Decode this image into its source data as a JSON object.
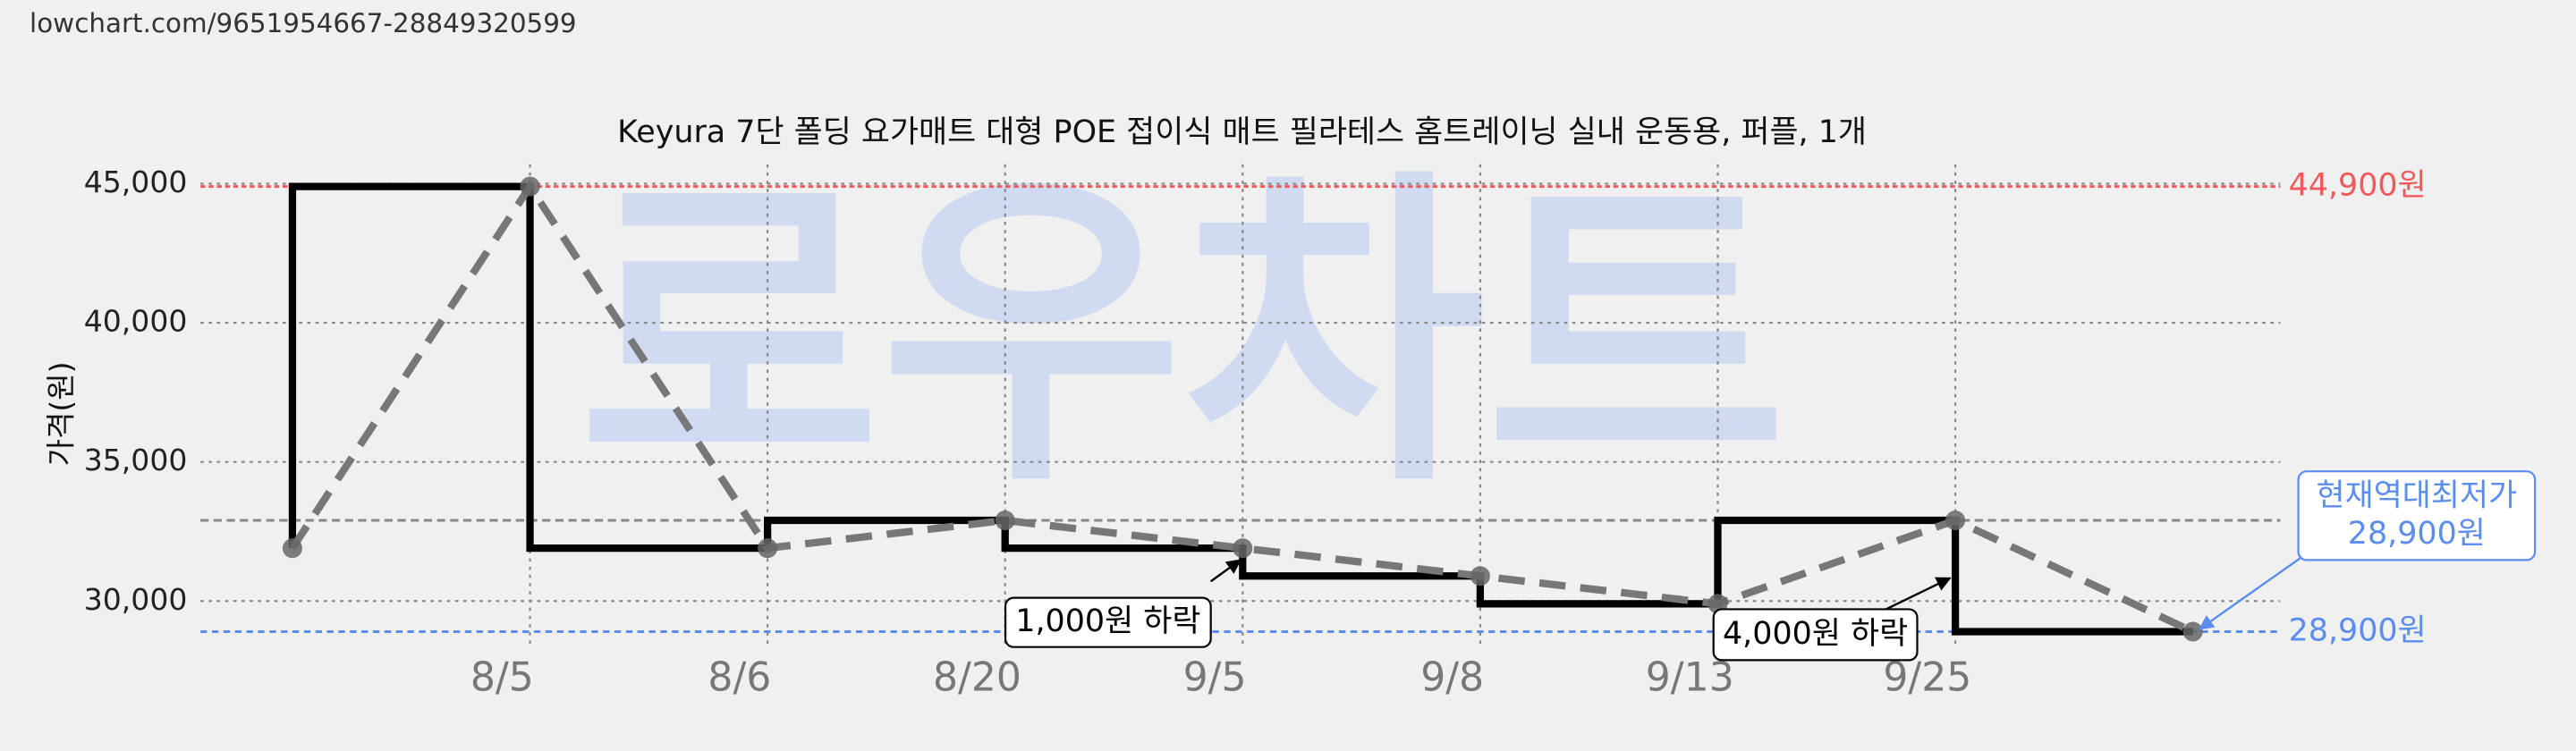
{
  "header": {
    "url": "lowchart.com/9651954667-28849320599"
  },
  "chart_data": {
    "type": "line",
    "title": "Keyura 7단 폴딩 요가매트 대형 POE 접이식 매트 필라테스 홈트레이닝 실내 운동용, 퍼플, 1개",
    "watermark": "로우차트",
    "ylabel": "가격(원)",
    "categories": [
      null,
      "8/5",
      "8/6",
      "8/20",
      "9/5",
      "9/8",
      "9/13",
      "9/25",
      null
    ],
    "series": [
      {
        "values": [
          31900,
          44900,
          31900,
          32900,
          31900,
          30900,
          29900,
          32900,
          28900
        ],
        "color": "#777777",
        "step_color": "#000000"
      }
    ],
    "ylim": [
      28300,
      45700
    ],
    "yticks": [
      {
        "value": 30000,
        "label": "30,000"
      },
      {
        "value": 35000,
        "label": "35,000"
      },
      {
        "value": 40000,
        "label": "40,000"
      },
      {
        "value": 45000,
        "label": "45,000"
      }
    ],
    "grid": true,
    "max_line": {
      "value": 44900,
      "label": "44,900원",
      "color": "#f05a5a"
    },
    "min_line": {
      "value": 28900,
      "label": "28,900원",
      "color": "#5b8def"
    },
    "ref_line": {
      "value": 32900,
      "color": "#888888"
    },
    "annotations": [
      {
        "text": [
          "1,000원 하락"
        ],
        "color": "#000000"
      },
      {
        "text": [
          "4,000원 하락"
        ],
        "color": "#000000"
      },
      {
        "text": [
          "현재역대최저가",
          "28,900원"
        ],
        "color": "#5b8def"
      }
    ]
  }
}
